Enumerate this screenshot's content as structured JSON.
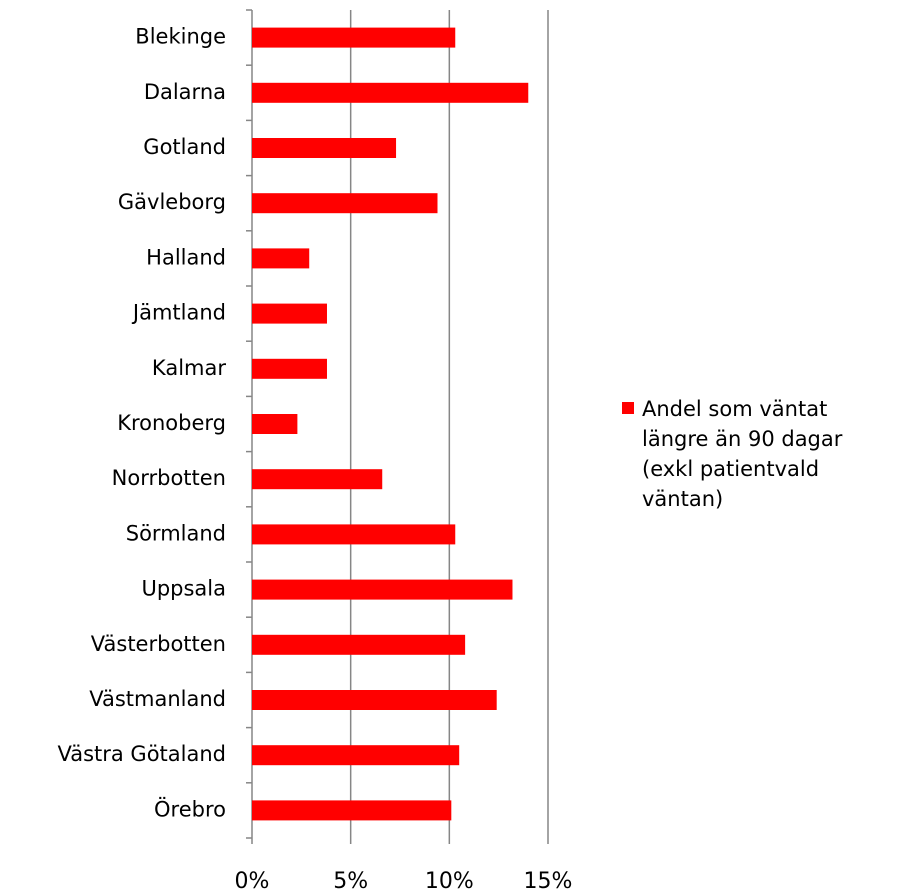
{
  "chart_data": {
    "type": "bar",
    "orientation": "horizontal",
    "categories": [
      "Blekinge",
      "Dalarna",
      "Gotland",
      "Gävleborg",
      "Halland",
      "Jämtland",
      "Kalmar",
      "Kronoberg",
      "Norrbotten",
      "Sörmland",
      "Uppsala",
      "Västerbotten",
      "Västmanland",
      "Västra Götaland",
      "Örebro"
    ],
    "series": [
      {
        "name": "Andel som väntat längre än 90 dagar (exkl patientvald väntan)",
        "color": "#ff0000",
        "values": [
          10.3,
          14.0,
          7.3,
          9.4,
          2.9,
          3.8,
          3.8,
          2.3,
          6.6,
          10.3,
          13.2,
          10.8,
          12.4,
          10.5,
          10.1
        ]
      }
    ],
    "xlim": [
      0,
      15
    ],
    "xticks": [
      {
        "value": 0,
        "label": "0%"
      },
      {
        "value": 5,
        "label": "5%"
      },
      {
        "value": 10,
        "label": "10%"
      },
      {
        "value": 15,
        "label": "15%"
      }
    ],
    "grid": true,
    "legend": "right"
  }
}
